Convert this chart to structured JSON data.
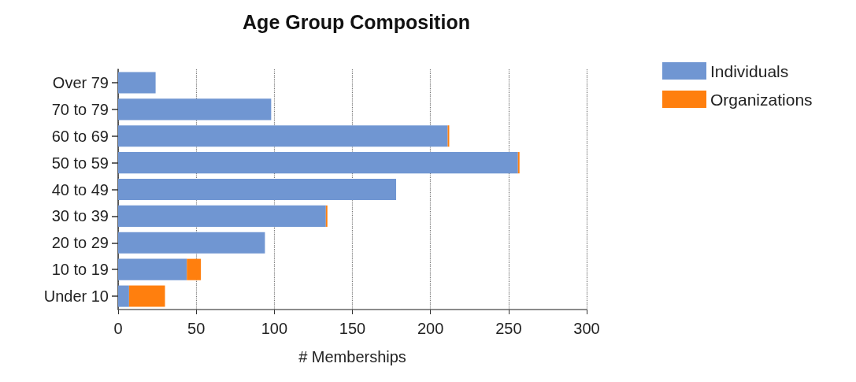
{
  "chart_data": {
    "type": "bar",
    "title": "Age Group Composition",
    "xlabel": "# Memberships",
    "orientation": "horizontal",
    "stacked": true,
    "categories": [
      "Over 79",
      "70 to 79",
      "60 to 69",
      "50 to 59",
      "40 to 49",
      "30 to 39",
      "20 to 29",
      "10 to 19",
      "Under 10"
    ],
    "series": [
      {
        "name": "Individuals",
        "color": "#7096d2",
        "values": [
          24,
          98,
          211,
          256,
          178,
          133,
          94,
          44,
          7
        ]
      },
      {
        "name": "Organizations",
        "color": "#ff7f0e",
        "values": [
          0,
          0,
          1,
          1,
          0,
          1,
          0,
          9,
          23
        ]
      }
    ],
    "xlim": [
      0,
      300
    ],
    "xticks": [
      0,
      50,
      100,
      150,
      200,
      250,
      300
    ],
    "grid": "x",
    "legend": "top right"
  }
}
